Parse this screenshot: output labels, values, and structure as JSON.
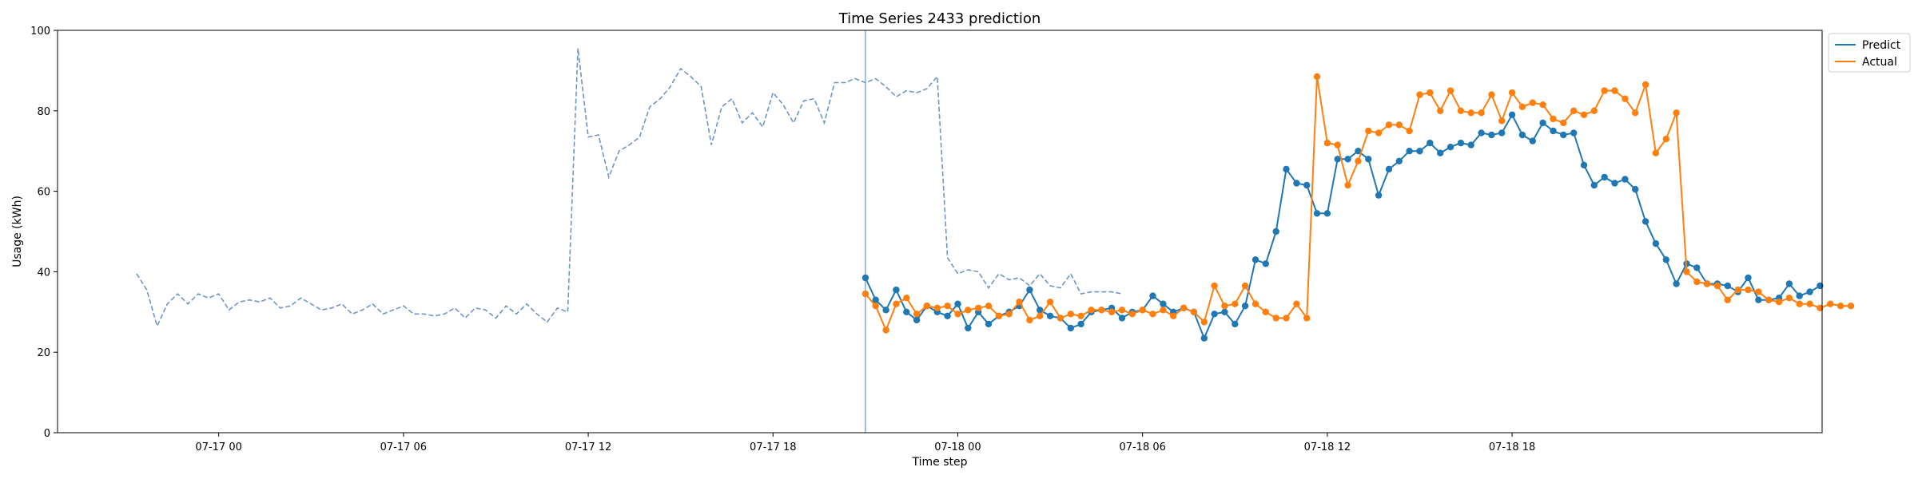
{
  "chart_data": {
    "type": "line",
    "title": "Time Series 2433 prediction",
    "xlabel": "Time step",
    "ylabel": "Usage (kWh)",
    "ylim": [
      0,
      100
    ],
    "yticks": [
      0,
      20,
      40,
      60,
      80,
      100
    ],
    "xlim": [
      -7.7,
      164.2
    ],
    "xticks": [
      {
        "t": 8,
        "label": "07-17 00"
      },
      {
        "t": 26,
        "label": "07-17 06"
      },
      {
        "t": 44,
        "label": "07-17 12"
      },
      {
        "t": 62,
        "label": "07-17 18"
      },
      {
        "t": 80,
        "label": "07-18 00"
      },
      {
        "t": 98,
        "label": "07-18 06"
      },
      {
        "t": 116,
        "label": "07-18 12"
      },
      {
        "t": 134,
        "label": "07-18 18"
      }
    ],
    "forecast_start": 71,
    "grid": false,
    "legend_position": "outside top-right",
    "colors": {
      "history": "#6f94c6",
      "predict": "#1f77b4",
      "actual": "#ff7f0e",
      "divider": "#6f94c6"
    },
    "history": {
      "t_start": 0,
      "values": [
        39.5,
        35.5,
        26.5,
        32,
        34.5,
        32,
        34.5,
        33.5,
        34.5,
        30.5,
        32.5,
        33,
        32.5,
        33.5,
        31,
        31.5,
        33.5,
        32,
        30.5,
        31,
        32,
        29.5,
        30.5,
        32,
        29.5,
        30.5,
        31.5,
        29.5,
        29.5,
        29,
        29.5,
        31,
        28.5,
        31,
        30.5,
        28.5,
        31.5,
        29.5,
        32,
        29.5,
        27.5,
        31,
        30,
        95.5,
        73.5,
        74,
        63.5,
        70,
        71.5,
        73.5,
        81,
        83,
        86,
        90.5,
        88.5,
        86,
        71.5,
        81,
        83,
        77,
        79.5,
        76,
        84.5,
        81.5,
        77,
        82.5,
        83,
        77,
        87,
        87,
        88,
        87,
        88,
        86,
        83.5,
        85,
        84.5,
        85.5,
        88.5,
        43.5,
        39.5,
        40.5,
        40,
        36,
        39.5,
        38,
        38.5,
        36.5,
        39.5,
        36.5,
        36,
        39.5,
        34.5,
        35,
        35,
        35,
        34.5
      ]
    },
    "series": [
      {
        "name": "Predict",
        "t_start": 71,
        "values": [
          38.5,
          33,
          30.5,
          35.5,
          30,
          28,
          31.5,
          30,
          29,
          32,
          26,
          30,
          27,
          29,
          30,
          31.5,
          35.5,
          30.5,
          29,
          28.5,
          26,
          27,
          30,
          30.5,
          31,
          28.5,
          30,
          30.5,
          34,
          32,
          30,
          31,
          30,
          23.5,
          29.5,
          30,
          27,
          31.5,
          43,
          42,
          50,
          65.5,
          62,
          61.5,
          54.5,
          54.5,
          68,
          68,
          70,
          68,
          59,
          65.5,
          67.5,
          70,
          70,
          72,
          69.5,
          71,
          72,
          71.5,
          74.5,
          74,
          74.5,
          79,
          74,
          72.5,
          77,
          75,
          74,
          74.5,
          66.5,
          61.5,
          63.5,
          62,
          63,
          60.5,
          52.5,
          47,
          43,
          37,
          42,
          41,
          37,
          37,
          36.5,
          35,
          38.5,
          33,
          33,
          33.5,
          37,
          34,
          35,
          36.5
        ]
      },
      {
        "name": "Actual",
        "t_start": 71,
        "values": [
          34.5,
          31.5,
          25.5,
          32,
          33.5,
          29.5,
          31.5,
          31,
          31.5,
          29.5,
          30.5,
          31,
          31.5,
          29,
          29.5,
          32.5,
          28,
          29,
          32.5,
          28.5,
          29.5,
          29,
          30.5,
          30.5,
          30,
          30.5,
          29.5,
          30.5,
          29.5,
          30.5,
          29,
          31,
          30,
          27.5,
          36.5,
          31.5,
          32,
          36.5,
          32,
          30,
          28.5,
          28.5,
          32,
          28.5,
          88.5,
          72,
          71.5,
          61.5,
          67.5,
          75,
          74.5,
          76.5,
          76.5,
          75,
          84,
          84.5,
          80,
          85,
          80,
          79.5,
          79.5,
          84,
          77.5,
          84.5,
          81,
          82,
          81.5,
          78,
          77,
          80,
          79,
          80,
          85,
          85,
          83,
          79.5,
          86.5,
          69.5,
          73,
          79.5,
          40,
          37.5,
          37,
          36.5,
          33,
          35.5,
          35.5,
          35,
          33,
          32.5,
          33.5,
          32,
          32,
          31,
          32,
          31.5,
          31.5
        ]
      }
    ]
  }
}
